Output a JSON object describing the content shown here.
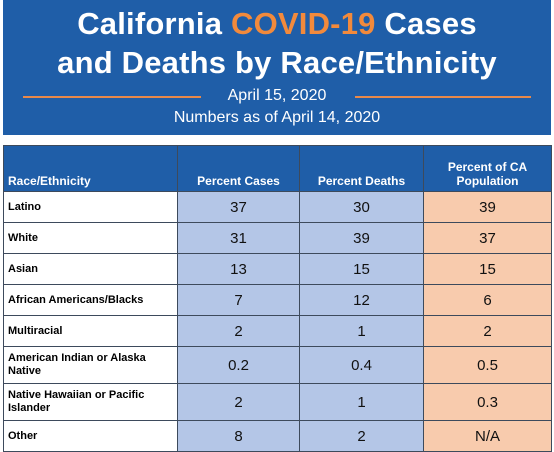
{
  "header": {
    "title_part1": "California ",
    "title_accent": "COVID-19",
    "title_part2": " Cases",
    "title_line2": "and Deaths by Race/Ethnicity",
    "date": "April 15, 2020",
    "as_of": "Numbers as of April 14, 2020",
    "colors": {
      "background": "#1f5ea8",
      "accent": "#f28a3c"
    }
  },
  "table": {
    "columns": [
      "Race/Ethnicity",
      "Percent Cases",
      "Percent Deaths",
      "Percent of CA Population"
    ],
    "rows": [
      {
        "label": "Latino",
        "cases": "37",
        "deaths": "30",
        "population": "39"
      },
      {
        "label": "White",
        "cases": "31",
        "deaths": "39",
        "population": "37"
      },
      {
        "label": "Asian",
        "cases": "13",
        "deaths": "15",
        "population": "15"
      },
      {
        "label": "African Americans/Blacks",
        "cases": "7",
        "deaths": "12",
        "population": "6"
      },
      {
        "label": "Multiracial",
        "cases": "2",
        "deaths": "1",
        "population": "2"
      },
      {
        "label": "American Indian or Alaska Native",
        "cases": "0.2",
        "deaths": "0.4",
        "population": "0.5"
      },
      {
        "label": "Native Hawaiian or Pacific Islander",
        "cases": "2",
        "deaths": "1",
        "population": "0.3"
      },
      {
        "label": "Other",
        "cases": "8",
        "deaths": "2",
        "population": "N/A"
      }
    ],
    "colors": {
      "cases_deaths_fill": "#b4c6e7",
      "population_fill": "#f8cbad"
    }
  }
}
